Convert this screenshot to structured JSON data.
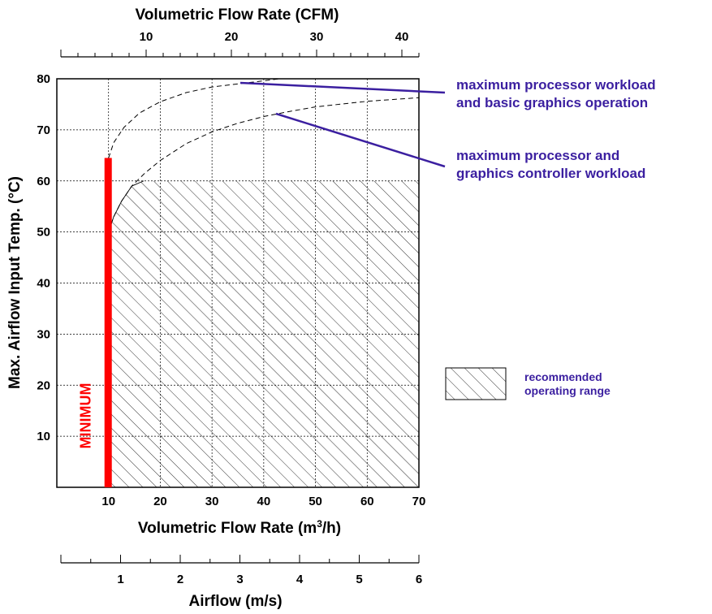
{
  "chart_data": {
    "type": "line",
    "title": "",
    "top_axis": {
      "label": "Volumetric Flow Rate (CFM)",
      "ticks": [
        10,
        20,
        30,
        40
      ],
      "range": [
        0,
        42
      ]
    },
    "bottom_axis": {
      "label_main": "Volumetric Flow Rate (m",
      "label_sup": "3",
      "label_tail": "/h)",
      "ticks": [
        10,
        20,
        30,
        40,
        50,
        60,
        70
      ],
      "range": [
        0,
        70
      ]
    },
    "airflow_axis": {
      "label": "Airflow (m/s)",
      "ticks": [
        1,
        2,
        3,
        4,
        5,
        6
      ],
      "range": [
        0,
        6
      ]
    },
    "y_axis": {
      "label": "Max. Airflow Input Temp. (°C)",
      "ticks": [
        10,
        20,
        30,
        40,
        50,
        60,
        70,
        80
      ],
      "range": [
        0,
        80
      ]
    },
    "grid": true,
    "minimum": {
      "label": "MINIMUM",
      "x": 10,
      "y_top": 64.5,
      "color": "#ff0000"
    },
    "recommended_region": {
      "legend_line1": "recommended",
      "legend_line2": "operating range",
      "x_from": 10,
      "x_to": 70,
      "y_to": 60,
      "boundary": [
        [
          10,
          50
        ],
        [
          11,
          53
        ],
        [
          12.5,
          56
        ],
        [
          14.5,
          59
        ],
        [
          16.8,
          60
        ]
      ]
    },
    "series": [
      {
        "name": "maximum processor workload and basic graphics operation",
        "label_line1": "maximum processor workload",
        "label_line2": "and basic graphics operation",
        "style": "dashed",
        "points": [
          [
            10,
            64.5
          ],
          [
            11,
            67.5
          ],
          [
            13,
            70.5
          ],
          [
            16,
            73.3
          ],
          [
            20,
            75.5
          ],
          [
            25,
            77.3
          ],
          [
            30,
            78.4
          ],
          [
            35,
            79
          ],
          [
            40,
            79.6
          ],
          [
            43,
            80
          ]
        ]
      },
      {
        "name": "maximum processor and graphics controller workload",
        "label_line1": "maximum processor and",
        "label_line2": "graphics controller workload",
        "style": "dashed",
        "points": [
          [
            10,
            50
          ],
          [
            11,
            53
          ],
          [
            12.5,
            56
          ],
          [
            14.5,
            59
          ],
          [
            17,
            61.5
          ],
          [
            20,
            64
          ],
          [
            25,
            67.3
          ],
          [
            30,
            69.6
          ],
          [
            35,
            71.3
          ],
          [
            40,
            72.6
          ],
          [
            45,
            73.6
          ],
          [
            50,
            74.5
          ],
          [
            60,
            75.6
          ],
          [
            70,
            76.3
          ]
        ]
      }
    ],
    "colors": {
      "annotation": "#3b1fa0",
      "minimum_bar": "#ff0000"
    }
  }
}
